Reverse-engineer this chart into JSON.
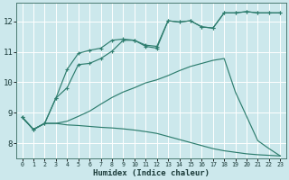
{
  "xlabel": "Humidex (Indice chaleur)",
  "bg_color": "#cce8ec",
  "grid_color": "#ffffff",
  "line_color": "#2e7d6e",
  "xlim": [
    -0.5,
    23.5
  ],
  "ylim": [
    7.5,
    12.6
  ],
  "xticks": [
    0,
    1,
    2,
    3,
    4,
    5,
    6,
    7,
    8,
    9,
    10,
    11,
    12,
    13,
    14,
    15,
    16,
    17,
    18,
    19,
    20,
    21,
    22,
    23
  ],
  "yticks": [
    8,
    9,
    10,
    11,
    12
  ],
  "line1_x": [
    0,
    1,
    2,
    3,
    4,
    5,
    6,
    7,
    8,
    9,
    10,
    11,
    12,
    13,
    14,
    15,
    16,
    17,
    18,
    19,
    20,
    21,
    22,
    23
  ],
  "line1_y": [
    8.85,
    8.45,
    8.65,
    8.65,
    8.6,
    8.58,
    8.55,
    8.52,
    8.5,
    8.47,
    8.43,
    8.38,
    8.32,
    8.22,
    8.12,
    8.02,
    7.92,
    7.82,
    7.75,
    7.7,
    7.65,
    7.62,
    7.6,
    7.58
  ],
  "line2_x": [
    0,
    1,
    2,
    3,
    4,
    5,
    6,
    7,
    8,
    9,
    10,
    11,
    12,
    13,
    14,
    15,
    16,
    17,
    18,
    19,
    20,
    21,
    22,
    23
  ],
  "line2_y": [
    8.85,
    8.45,
    8.65,
    8.65,
    8.72,
    8.88,
    9.05,
    9.28,
    9.5,
    9.68,
    9.82,
    9.98,
    10.08,
    10.22,
    10.38,
    10.52,
    10.62,
    10.72,
    10.78,
    9.68,
    8.88,
    8.08,
    7.82,
    7.58
  ],
  "line3_x": [
    0,
    1,
    2,
    3,
    4,
    5,
    6,
    7,
    8,
    9,
    10,
    11,
    12,
    13,
    14,
    15,
    16,
    17,
    18,
    19,
    20,
    21,
    22,
    23
  ],
  "line3_y": [
    8.85,
    8.45,
    8.65,
    9.48,
    10.42,
    10.95,
    11.05,
    11.12,
    11.38,
    11.42,
    11.38,
    11.18,
    11.12,
    12.02,
    11.98,
    12.02,
    11.82,
    11.78,
    12.28,
    12.28,
    12.32,
    12.28,
    12.28,
    12.28
  ],
  "line4_x": [
    0,
    1,
    2,
    3,
    4,
    5,
    6,
    7,
    8,
    9,
    10,
    11,
    12,
    13,
    14,
    15,
    16,
    17,
    18,
    19,
    20,
    21,
    22,
    23
  ],
  "line4_y": [
    8.85,
    8.45,
    8.65,
    9.48,
    9.82,
    10.58,
    10.62,
    10.78,
    11.02,
    11.38,
    11.38,
    11.22,
    11.18,
    12.02,
    11.98,
    12.02,
    11.82,
    11.78,
    12.28,
    12.28,
    12.32,
    12.28,
    12.28,
    12.28
  ]
}
